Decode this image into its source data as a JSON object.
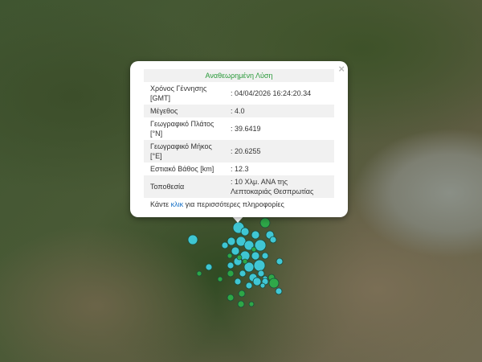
{
  "popup": {
    "title": "Αναθεωρημένη Λύση",
    "close_icon": "×",
    "rows": [
      {
        "label": "Χρόνος Γέννησης [GMT]",
        "value": ": 04/04/2026 16:24:20.34"
      },
      {
        "label": "Μέγεθος",
        "value": ": 4.0"
      },
      {
        "label": "Γεωγραφικό Πλάτος [°N]",
        "value": ": 39.6419"
      },
      {
        "label": "Γεωγραφικό Μήκος [°E]",
        "value": ": 20.6255"
      },
      {
        "label": "Εστιακό Βάθος [km]",
        "value": ": 12.3"
      },
      {
        "label": "Τοποθεσία",
        "value": ": 10 Χλμ. ΑΝΑ της Λεπτοκαριάς Θεσπρωτίας"
      }
    ],
    "more_prefix": "Κάντε ",
    "more_link": "κλικ",
    "more_suffix": " για περισσότερες πληροφορίες"
  },
  "colors": {
    "recent_marker": "#3fd3e6",
    "older_marker": "#2bb04a",
    "title_text": "#2a9a3a",
    "link": "#1a73c8"
  }
}
